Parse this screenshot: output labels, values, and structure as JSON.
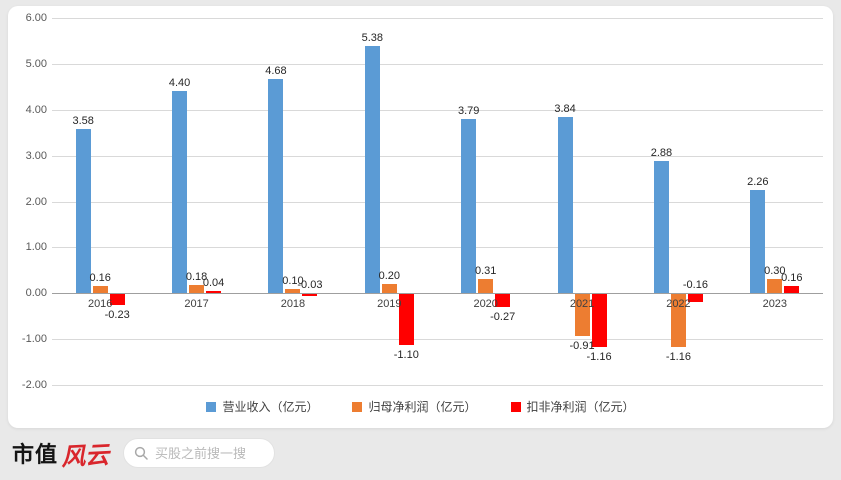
{
  "chart_data": {
    "type": "bar",
    "categories": [
      "2016",
      "2017",
      "2018",
      "2019",
      "2020",
      "2021",
      "2022",
      "2023"
    ],
    "series": [
      {
        "key": "revenue",
        "name": "营业收入（亿元）",
        "color": "#5B9BD5",
        "values": [
          3.58,
          4.4,
          4.68,
          5.38,
          3.79,
          3.84,
          2.88,
          2.26
        ]
      },
      {
        "key": "net-profit",
        "name": "归母净利润（亿元）",
        "color": "#ED7D31",
        "values": [
          0.16,
          0.18,
          0.1,
          0.2,
          0.31,
          -0.91,
          -1.16,
          0.3
        ]
      },
      {
        "key": "adj-net-profit",
        "name": "扣非净利润（亿元）",
        "color": "#FF0000",
        "values": [
          -0.23,
          0.04,
          -0.03,
          -1.1,
          -0.27,
          -1.16,
          -0.16,
          0.16
        ]
      }
    ],
    "ylim": [
      -2,
      6
    ],
    "ytick_step": 1,
    "ytick_labels": [
      "6.00",
      "5.00",
      "4.00",
      "3.00",
      "2.00",
      "1.00",
      "0.00",
      "-1.00",
      "-2.00"
    ],
    "grid": true,
    "legend_position": "bottom"
  },
  "footer": {
    "logo_text_1": "市值",
    "logo_text_2": "风云",
    "search_placeholder": "买股之前搜一搜"
  }
}
